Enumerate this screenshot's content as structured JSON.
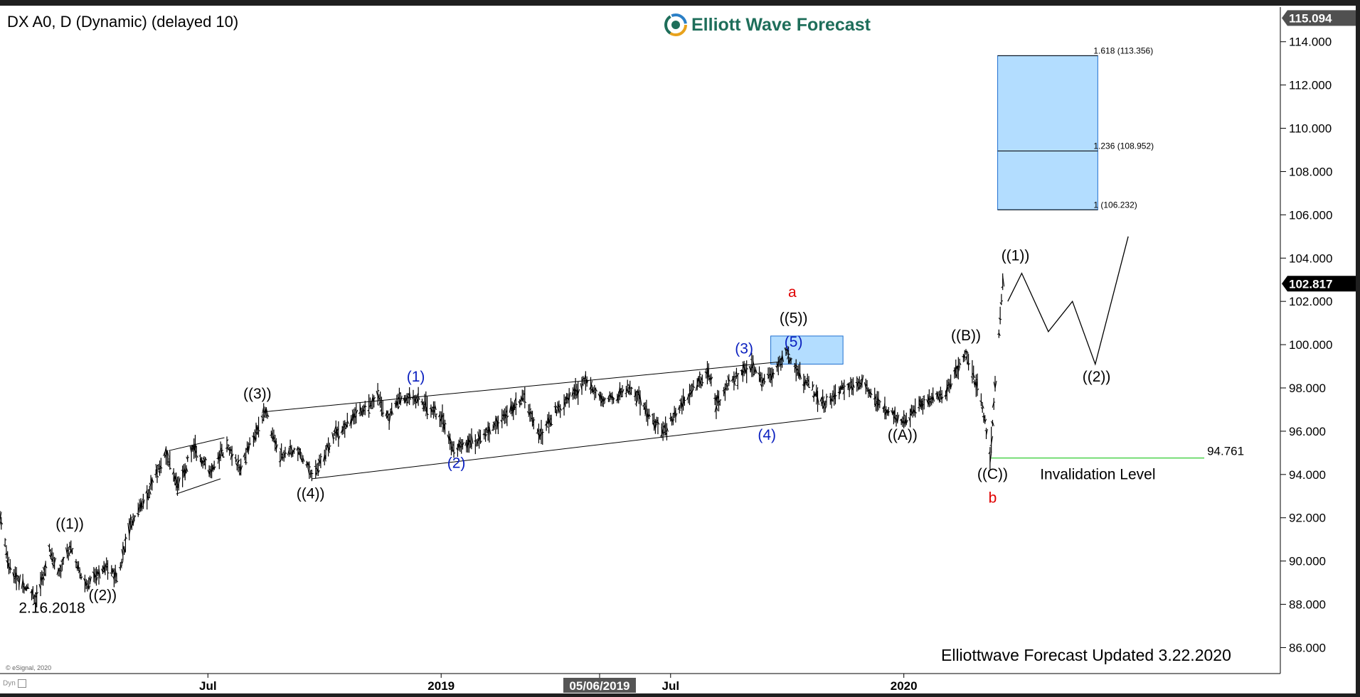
{
  "header": {
    "title": "DX A0, D (Dynamic) (delayed 10)",
    "logo_text": "Elliott Wave Forecast"
  },
  "footer": {
    "updated": "Elliottwave Forecast Updated 3.22.2020",
    "copyright": "© eSignal, 2020",
    "dyn_label": "Dyn"
  },
  "colors": {
    "wave_black": "#000000",
    "wave_blue": "#0a1fbf",
    "wave_red": "#e00000",
    "target_box": "#b3ddff",
    "target_border": "#1e6fd0",
    "invalidation_line": "#33cc33",
    "price_bars": "#000000"
  },
  "chart_data": {
    "type": "ohlc",
    "instrument": "DX A0",
    "timeframe": "D",
    "y_axis": {
      "ticks": [
        "86.000",
        "88.000",
        "90.000",
        "92.000",
        "94.000",
        "96.000",
        "98.000",
        "100.000",
        "102.000",
        "104.000",
        "106.000",
        "108.000",
        "110.000",
        "112.000",
        "114.000"
      ],
      "ylim": [
        84.8,
        115.6
      ],
      "position": "right"
    },
    "x_axis": {
      "tick_labels": [
        {
          "label": "Jul",
          "date": "2018-07-01"
        },
        {
          "label": "2019",
          "date": "2019-01-01"
        },
        {
          "label": "05/06/2019",
          "date": "2019-05-06",
          "highlighted": true
        },
        {
          "label": "Jul",
          "date": "2019-07-01"
        },
        {
          "label": "2020",
          "date": "2020-01-01"
        }
      ],
      "range": [
        "2018-01-18",
        "2020-10-24"
      ]
    },
    "price_tags": [
      {
        "value": 115.094,
        "label": "115.094",
        "style": "dark"
      },
      {
        "value": 102.817,
        "label": "102.817",
        "style": "black"
      }
    ],
    "price_path": [
      {
        "date": "2018-01-18",
        "price": 92.1
      },
      {
        "date": "2018-01-25",
        "price": 89.8
      },
      {
        "date": "2018-02-01",
        "price": 89.2
      },
      {
        "date": "2018-02-16",
        "price": 88.3
      },
      {
        "date": "2018-02-26",
        "price": 90.5
      },
      {
        "date": "2018-03-05",
        "price": 89.4
      },
      {
        "date": "2018-03-14",
        "price": 90.7
      },
      {
        "date": "2018-03-27",
        "price": 88.9
      },
      {
        "date": "2018-04-10",
        "price": 89.8
      },
      {
        "date": "2018-04-20",
        "price": 89.2
      },
      {
        "date": "2018-04-30",
        "price": 91.5
      },
      {
        "date": "2018-05-15",
        "price": 93.2
      },
      {
        "date": "2018-05-29",
        "price": 95.0
      },
      {
        "date": "2018-06-07",
        "price": 93.4
      },
      {
        "date": "2018-06-20",
        "price": 95.3
      },
      {
        "date": "2018-07-02",
        "price": 94.1
      },
      {
        "date": "2018-07-16",
        "price": 95.3
      },
      {
        "date": "2018-07-26",
        "price": 94.3
      },
      {
        "date": "2018-08-15",
        "price": 96.9
      },
      {
        "date": "2018-08-27",
        "price": 94.8
      },
      {
        "date": "2018-09-10",
        "price": 95.2
      },
      {
        "date": "2018-09-21",
        "price": 93.9
      },
      {
        "date": "2018-10-09",
        "price": 95.8
      },
      {
        "date": "2018-10-31",
        "price": 97.0
      },
      {
        "date": "2018-11-12",
        "price": 97.6
      },
      {
        "date": "2018-11-20",
        "price": 96.6
      },
      {
        "date": "2018-11-29",
        "price": 97.4
      },
      {
        "date": "2018-12-14",
        "price": 97.5
      },
      {
        "date": "2019-01-02",
        "price": 96.6
      },
      {
        "date": "2019-01-10",
        "price": 95.2
      },
      {
        "date": "2019-01-31",
        "price": 95.6
      },
      {
        "date": "2019-03-07",
        "price": 97.6
      },
      {
        "date": "2019-03-20",
        "price": 95.8
      },
      {
        "date": "2019-04-01",
        "price": 96.9
      },
      {
        "date": "2019-04-25",
        "price": 98.3
      },
      {
        "date": "2019-05-10",
        "price": 97.3
      },
      {
        "date": "2019-05-31",
        "price": 98.0
      },
      {
        "date": "2019-06-25",
        "price": 95.9
      },
      {
        "date": "2019-07-10",
        "price": 97.4
      },
      {
        "date": "2019-07-31",
        "price": 98.7
      },
      {
        "date": "2019-08-06",
        "price": 97.2
      },
      {
        "date": "2019-08-16",
        "price": 98.3
      },
      {
        "date": "2019-09-03",
        "price": 99.0
      },
      {
        "date": "2019-09-13",
        "price": 98.2
      },
      {
        "date": "2019-10-01",
        "price": 99.6
      },
      {
        "date": "2019-10-15",
        "price": 98.3
      },
      {
        "date": "2019-10-31",
        "price": 97.3
      },
      {
        "date": "2019-11-15",
        "price": 98.0
      },
      {
        "date": "2019-11-29",
        "price": 98.3
      },
      {
        "date": "2019-12-13",
        "price": 97.2
      },
      {
        "date": "2019-12-31",
        "price": 96.4
      },
      {
        "date": "2020-01-13",
        "price": 97.2
      },
      {
        "date": "2020-02-03",
        "price": 97.8
      },
      {
        "date": "2020-02-19",
        "price": 99.7
      },
      {
        "date": "2020-03-03",
        "price": 97.2
      },
      {
        "date": "2020-03-09",
        "price": 94.7
      },
      {
        "date": "2020-03-11",
        "price": 96.5
      },
      {
        "date": "2020-03-19",
        "price": 102.8
      },
      {
        "date": "2020-03-20",
        "price": 102.5
      }
    ],
    "projection_path": [
      {
        "date": "2020-03-23",
        "price": 102.0
      },
      {
        "date": "2020-04-03",
        "price": 103.3
      },
      {
        "date": "2020-04-24",
        "price": 100.6
      },
      {
        "date": "2020-05-13",
        "price": 102.0
      },
      {
        "date": "2020-05-31",
        "price": 99.1
      },
      {
        "date": "2020-06-26",
        "price": 105.0
      }
    ],
    "channels": [
      {
        "name": "upper",
        "from": {
          "date": "2018-08-15",
          "price": 96.9
        },
        "to": {
          "date": "2019-09-24",
          "price": 99.2
        }
      },
      {
        "name": "lower",
        "from": {
          "date": "2018-09-21",
          "price": 93.8
        },
        "to": {
          "date": "2019-10-28",
          "price": 96.6
        }
      },
      {
        "name": "wedge-upper",
        "from": {
          "date": "2018-05-31",
          "price": 95.1
        },
        "to": {
          "date": "2018-07-14",
          "price": 95.7
        }
      },
      {
        "name": "wedge-lower",
        "from": {
          "date": "2018-06-06",
          "price": 93.1
        },
        "to": {
          "date": "2018-07-11",
          "price": 93.8
        }
      }
    ],
    "boxes": [
      {
        "name": "wave-5-target",
        "from": "2019-09-18",
        "to": "2019-11-14",
        "top": 100.4,
        "bottom": 99.1
      },
      {
        "name": "extension-target",
        "from": "2020-03-15",
        "to": "2020-06-02",
        "top": 113.356,
        "bottom": 106.232
      }
    ],
    "fib_levels": [
      {
        "label": "1.618 (113.356)",
        "value": 113.356
      },
      {
        "label": "1.236 (108.952)",
        "value": 108.952
      },
      {
        "label": "1 (106.232)",
        "value": 106.232
      }
    ],
    "invalidation": {
      "value": 94.761,
      "label": "94.761",
      "caption": "Invalidation Level",
      "from": "2020-03-10",
      "to": "2020-08-25"
    },
    "wave_labels": [
      {
        "text": "2.16.2018",
        "date": "2018-02-28",
        "price": 87.6,
        "color": "black"
      },
      {
        "text": "((1))",
        "date": "2018-03-14",
        "price": 91.5,
        "color": "black"
      },
      {
        "text": "((2))",
        "date": "2018-04-09",
        "price": 88.2,
        "color": "black"
      },
      {
        "text": "((3))",
        "date": "2018-08-09",
        "price": 97.5,
        "color": "black"
      },
      {
        "text": "((4))",
        "date": "2018-09-20",
        "price": 92.9,
        "color": "black"
      },
      {
        "text": "(1)",
        "date": "2018-12-12",
        "price": 98.3,
        "color": "blue"
      },
      {
        "text": "(2)",
        "date": "2019-01-13",
        "price": 94.3,
        "color": "blue"
      },
      {
        "text": "(3)",
        "date": "2019-08-28",
        "price": 99.6,
        "color": "blue"
      },
      {
        "text": "(4)",
        "date": "2019-09-15",
        "price": 95.6,
        "color": "blue"
      },
      {
        "text": "(5)",
        "date": "2019-10-06",
        "price": 99.9,
        "color": "blue"
      },
      {
        "text": "((5))",
        "date": "2019-10-06",
        "price": 101.0,
        "color": "black"
      },
      {
        "text": "a",
        "date": "2019-10-05",
        "price": 102.2,
        "color": "red"
      },
      {
        "text": "((A))",
        "date": "2019-12-31",
        "price": 95.6,
        "color": "black"
      },
      {
        "text": "((B))",
        "date": "2020-02-19",
        "price": 100.2,
        "color": "black"
      },
      {
        "text": "((C))",
        "date": "2020-03-11",
        "price": 93.8,
        "color": "black"
      },
      {
        "text": "b",
        "date": "2020-03-11",
        "price": 92.7,
        "color": "red"
      },
      {
        "text": "((1))",
        "date": "2020-03-29",
        "price": 103.9,
        "color": "black"
      },
      {
        "text": "((2))",
        "date": "2020-06-01",
        "price": 98.3,
        "color": "black"
      }
    ]
  }
}
